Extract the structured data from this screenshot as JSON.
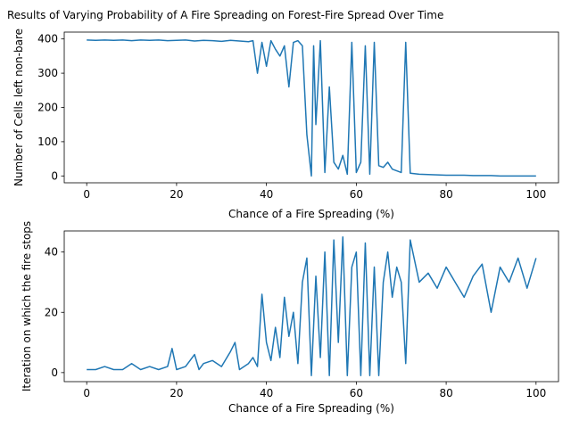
{
  "figure": {
    "suptitle": "Results of Varying Probability of A Fire Spreading on Forest-Fire Spread Over Time"
  },
  "chart_data": [
    {
      "type": "line",
      "xlabel": "Chance of a Fire Spreading (%)",
      "ylabel": "Number of Cells left non-bare",
      "xlim": [
        -5,
        105
      ],
      "ylim": [
        -20,
        420
      ],
      "xticks": [
        0,
        20,
        40,
        60,
        80,
        100
      ],
      "yticks": [
        0,
        100,
        200,
        300,
        400
      ],
      "grid": false,
      "color": "#1f77b4",
      "x": [
        0,
        2,
        4,
        6,
        8,
        10,
        12,
        14,
        16,
        18,
        20,
        22,
        24,
        26,
        28,
        30,
        32,
        34,
        36,
        37,
        38,
        39,
        40,
        41,
        42,
        43,
        44,
        45,
        46,
        47,
        48,
        49,
        50,
        50.5,
        51,
        52,
        53,
        54,
        55,
        56,
        57,
        58,
        59,
        60,
        61,
        62,
        63,
        64,
        65,
        66,
        67,
        68,
        69,
        70,
        71,
        72,
        74,
        76,
        78,
        80,
        82,
        84,
        86,
        88,
        90,
        92,
        94,
        96,
        98,
        100
      ],
      "values": [
        397,
        396,
        397,
        396,
        397,
        395,
        397,
        396,
        397,
        395,
        396,
        397,
        394,
        396,
        395,
        393,
        396,
        394,
        392,
        395,
        300,
        390,
        320,
        395,
        370,
        350,
        380,
        260,
        390,
        395,
        380,
        120,
        0,
        380,
        150,
        395,
        10,
        260,
        40,
        20,
        60,
        5,
        390,
        10,
        40,
        380,
        5,
        390,
        30,
        25,
        40,
        20,
        15,
        10,
        390,
        8,
        5,
        4,
        3,
        2,
        2,
        2,
        1,
        1,
        1,
        0,
        0,
        0,
        0,
        0
      ]
    },
    {
      "type": "line",
      "xlabel": "Chance of a Fire Spreading (%)",
      "ylabel": "Iteration on which the fire stops",
      "xlim": [
        -5,
        105
      ],
      "ylim": [
        -3,
        47
      ],
      "xticks": [
        0,
        20,
        40,
        60,
        80,
        100
      ],
      "yticks": [
        0,
        20,
        40
      ],
      "grid": false,
      "color": "#1f77b4",
      "x": [
        0,
        2,
        4,
        6,
        8,
        10,
        12,
        14,
        16,
        18,
        19,
        20,
        22,
        24,
        25,
        26,
        28,
        30,
        32,
        33,
        34,
        36,
        37,
        38,
        39,
        40,
        41,
        42,
        43,
        44,
        45,
        46,
        47,
        48,
        49,
        50,
        51,
        52,
        53,
        54,
        55,
        56,
        57,
        58,
        59,
        60,
        61,
        62,
        63,
        64,
        65,
        66,
        67,
        68,
        69,
        70,
        71,
        72,
        74,
        76,
        78,
        80,
        82,
        84,
        86,
        88,
        90,
        92,
        94,
        96,
        98,
        100
      ],
      "values": [
        1,
        1,
        2,
        1,
        1,
        3,
        1,
        2,
        1,
        2,
        8,
        1,
        2,
        6,
        1,
        3,
        4,
        2,
        7,
        10,
        1,
        3,
        5,
        2,
        26,
        10,
        4,
        15,
        5,
        25,
        12,
        20,
        3,
        30,
        38,
        -1,
        32,
        5,
        40,
        -1,
        44,
        10,
        45,
        -1,
        35,
        40,
        -1,
        43,
        -1,
        35,
        -1,
        30,
        40,
        25,
        35,
        30,
        3,
        44,
        30,
        33,
        28,
        35,
        30,
        25,
        32,
        36,
        20,
        35,
        30,
        38,
        28,
        38
      ]
    }
  ]
}
